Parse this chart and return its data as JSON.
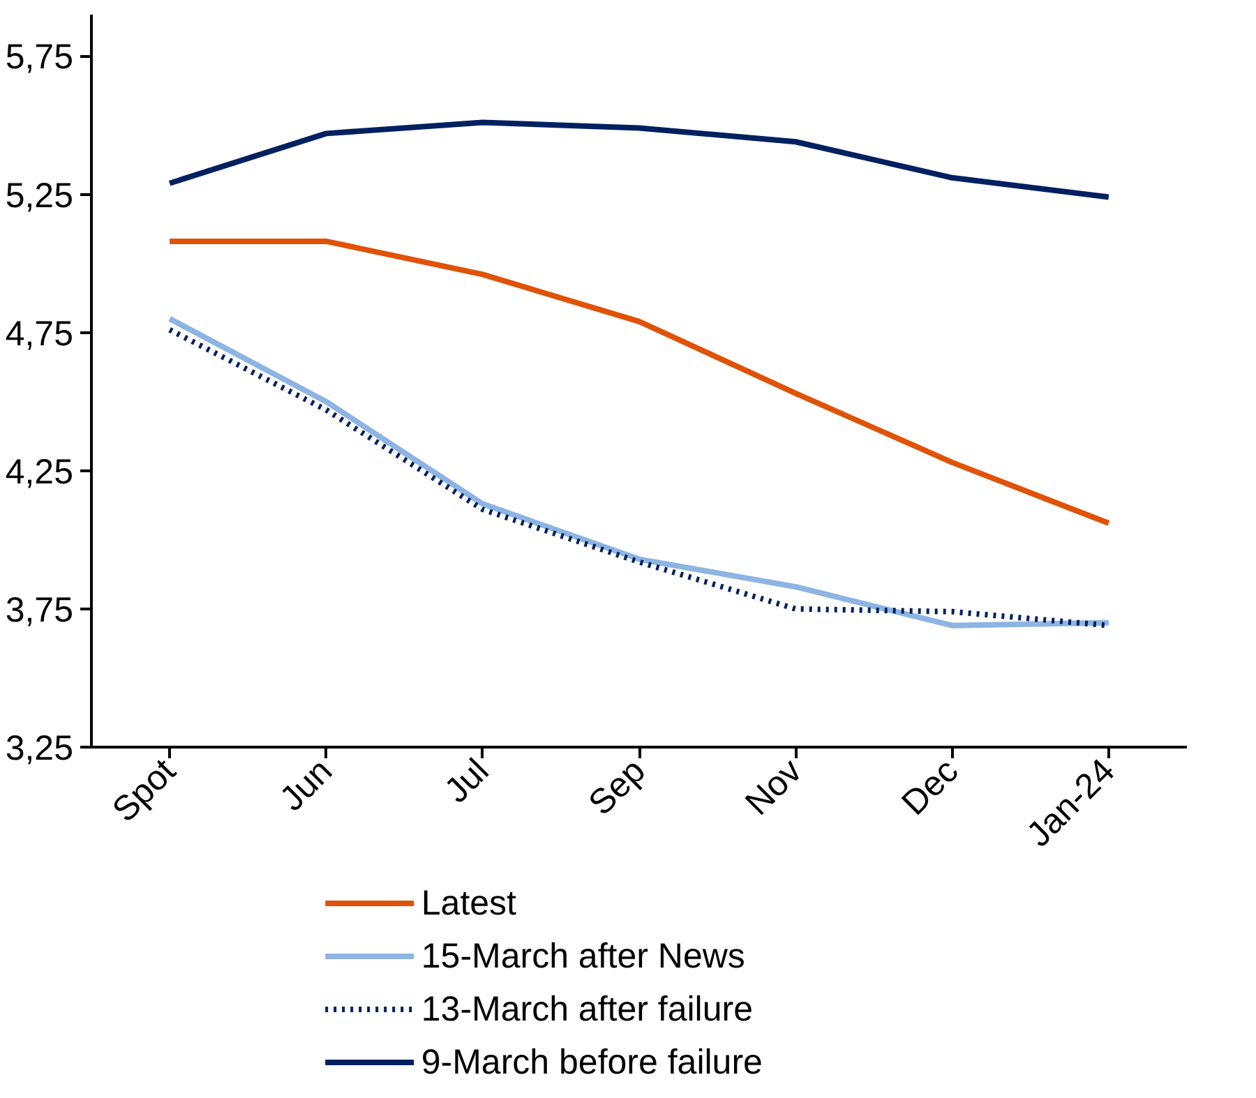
{
  "chart_data": {
    "type": "line",
    "categories": [
      "Spot",
      "Jun",
      "Jul",
      "Sep",
      "Nov",
      "Dec",
      "Jan-24"
    ],
    "series": [
      {
        "name": "Latest",
        "color": "#e05206",
        "line_style": "solid",
        "values": [
          5.08,
          5.08,
          4.96,
          4.79,
          4.53,
          4.28,
          4.06
        ]
      },
      {
        "name": "15-March after News",
        "color": "#8db4e2",
        "line_style": "solid",
        "values": [
          4.8,
          4.5,
          4.13,
          3.93,
          3.83,
          3.69,
          3.7
        ]
      },
      {
        "name": "13-March after failure",
        "color": "#002060",
        "line_style": "dotted",
        "values": [
          4.76,
          4.47,
          4.11,
          3.92,
          3.75,
          3.74,
          3.69
        ]
      },
      {
        "name": "9-March before failure",
        "color": "#002060",
        "line_style": "solid",
        "values": [
          5.29,
          5.47,
          5.51,
          5.49,
          5.44,
          5.31,
          5.24
        ]
      }
    ],
    "ylim": [
      3.25,
      5.9
    ],
    "yticks": [
      {
        "value": 3.25,
        "label": "3,25"
      },
      {
        "value": 3.75,
        "label": "3,75"
      },
      {
        "value": 4.25,
        "label": "4,25"
      },
      {
        "value": 4.75,
        "label": "4,75"
      },
      {
        "value": 5.25,
        "label": "5,25"
      },
      {
        "value": 5.75,
        "label": "5,75"
      }
    ],
    "grid": false,
    "legend": "bottom",
    "marker": "none"
  }
}
